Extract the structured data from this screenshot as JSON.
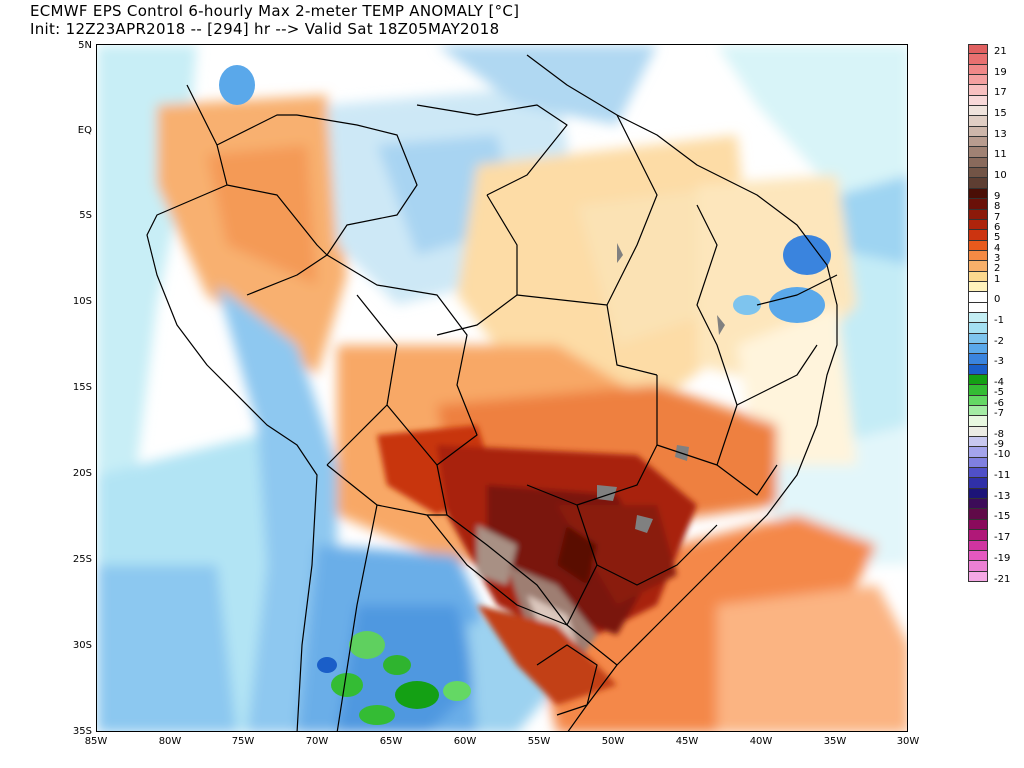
{
  "header": {
    "line1": "ECMWF EPS Control 6-hourly Max 2-meter TEMP ANOMALY [°C]",
    "line2": "Init: 12Z23APR2018 -- [294] hr --> Valid Sat 18Z05MAY2018"
  },
  "axes": {
    "y_labels": [
      "5N",
      "EQ",
      "5S",
      "10S",
      "15S",
      "20S",
      "25S",
      "30S",
      "35S"
    ],
    "x_labels": [
      "85W",
      "80W",
      "75W",
      "70W",
      "65W",
      "60W",
      "55W",
      "50W",
      "45W",
      "40W",
      "35W",
      "30W"
    ]
  },
  "colorbar": {
    "entries": [
      {
        "label": "21",
        "color": "#e06060"
      },
      {
        "label": "",
        "color": "#e87070"
      },
      {
        "label": "19",
        "color": "#f08888"
      },
      {
        "label": "",
        "color": "#f4a0a0"
      },
      {
        "label": "17",
        "color": "#f8c0c0"
      },
      {
        "label": "",
        "color": "#f8d8d8"
      },
      {
        "label": "15",
        "color": "#efe3dc"
      },
      {
        "label": "",
        "color": "#e0cec4"
      },
      {
        "label": "13",
        "color": "#cdb6aa"
      },
      {
        "label": "",
        "color": "#b89c8f"
      },
      {
        "label": "11",
        "color": "#a08274"
      },
      {
        "label": "",
        "color": "#896a5c"
      },
      {
        "label": "10",
        "color": "#725446"
      },
      {
        "label": "",
        "color": "#5e3e32"
      },
      {
        "label": "9",
        "color": "#4a0e06"
      },
      {
        "label": "8",
        "color": "#6a1008"
      },
      {
        "label": "7",
        "color": "#8c1a0a"
      },
      {
        "label": "6",
        "color": "#ae240c"
      },
      {
        "label": "5",
        "color": "#cc3410"
      },
      {
        "label": "4",
        "color": "#e85a1c"
      },
      {
        "label": "3",
        "color": "#f48a44"
      },
      {
        "label": "2",
        "color": "#f8b06a"
      },
      {
        "label": "1",
        "color": "#fcd88e"
      },
      {
        "label": "",
        "color": "#fff2bc"
      },
      {
        "label": "0",
        "color": "#ffffff"
      },
      {
        "label": "",
        "color": "#ffffff"
      },
      {
        "label": "-1",
        "color": "#c4eef4"
      },
      {
        "label": "",
        "color": "#a4e0f2"
      },
      {
        "label": "-2",
        "color": "#7ec4ee"
      },
      {
        "label": "",
        "color": "#5aa8ea"
      },
      {
        "label": "-3",
        "color": "#3a84de"
      },
      {
        "label": "",
        "color": "#1a5ec8"
      },
      {
        "label": "-4",
        "color": "#14a014"
      },
      {
        "label": "-5",
        "color": "#34bc34"
      },
      {
        "label": "-6",
        "color": "#64d864"
      },
      {
        "label": "-7",
        "color": "#a4eca4"
      },
      {
        "label": "",
        "color": "#e8f8e0"
      },
      {
        "label": "-8",
        "color": "#ecece4"
      },
      {
        "label": "-9",
        "color": "#c8c8f0"
      },
      {
        "label": "-10",
        "color": "#a4a4ec"
      },
      {
        "label": "",
        "color": "#8080e0"
      },
      {
        "label": "-11",
        "color": "#5050c8"
      },
      {
        "label": "",
        "color": "#3030a8"
      },
      {
        "label": "-13",
        "color": "#1c1478"
      },
      {
        "label": "",
        "color": "#3c0c58"
      },
      {
        "label": "-15",
        "color": "#600a48"
      },
      {
        "label": "",
        "color": "#8a0a5c"
      },
      {
        "label": "-17",
        "color": "#b01878"
      },
      {
        "label": "",
        "color": "#d034a0"
      },
      {
        "label": "-19",
        "color": "#e458c0"
      },
      {
        "label": "",
        "color": "#ec80d4"
      },
      {
        "label": "-21",
        "color": "#f4a8e4"
      }
    ]
  },
  "colors": {
    "border": "#000000",
    "map_background": "#ffffff",
    "lake_gray": "#808080"
  }
}
